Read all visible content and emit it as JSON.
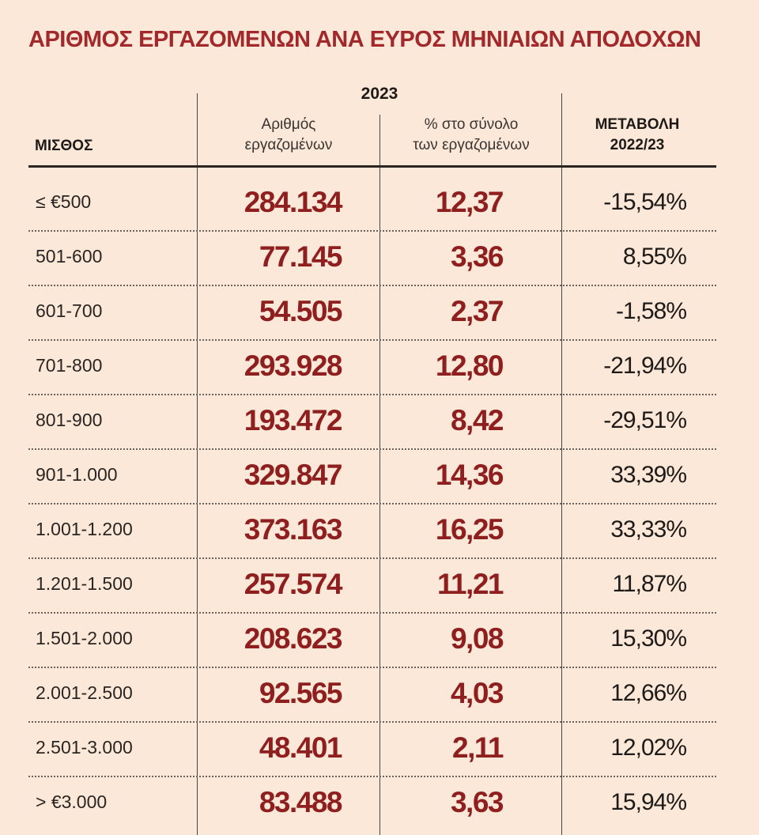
{
  "title": "ΑΡΙΘΜΟΣ ΕΡΓΑΖΟΜΕΝΩΝ ΑΝΑ ΕΥΡΟΣ ΜΗΝΙΑΙΩΝ ΑΠΟΔΟΧΩΝ",
  "table": {
    "group_header": "2023",
    "headers": [
      [
        "ΜΙΣΘΟΣ"
      ],
      [
        "Αριθμός",
        "εργαζομένων"
      ],
      [
        "% στο σύνολο",
        "των εργαζομένων"
      ],
      [
        "ΜΕΤΑΒΟΛΗ",
        "2022/23"
      ]
    ],
    "rows": [
      [
        "≤ €500",
        "284.134",
        "12,37",
        "-15,54%"
      ],
      [
        "501-600",
        "77.145",
        "3,36",
        "8,55%"
      ],
      [
        "601-700",
        "54.505",
        "2,37",
        "-1,58%"
      ],
      [
        "701-800",
        "293.928",
        "12,80",
        "-21,94%"
      ],
      [
        "801-900",
        "193.472",
        "8,42",
        "-29,51%"
      ],
      [
        "901-1.000",
        "329.847",
        "14,36",
        "33,39%"
      ],
      [
        "1.001-1.200",
        "373.163",
        "16,25",
        "33,33%"
      ],
      [
        "1.201-1.500",
        "257.574",
        "11,21",
        "11,87%"
      ],
      [
        "1.501-2.000",
        "208.623",
        "9,08",
        "15,30%"
      ],
      [
        "2.001-2.500",
        "92.565",
        "4,03",
        "12,66%"
      ],
      [
        "2.501-3.000",
        "48.401",
        "2,11",
        "12,02%"
      ],
      [
        "> €3.000",
        "83.488",
        "3,63",
        "15,94%"
      ]
    ]
  }
}
